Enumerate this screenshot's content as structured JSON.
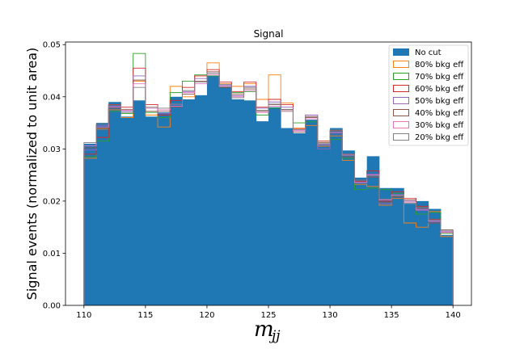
{
  "chart_data": {
    "type": "histogram",
    "title": "Signal",
    "xlabel_main": "m",
    "xlabel_sub": "jj",
    "ylabel": "Signal events (normalized to unit area)",
    "xlim": [
      108.5,
      141.5
    ],
    "ylim": [
      0,
      0.0505
    ],
    "xticks": [
      110,
      115,
      120,
      125,
      130,
      135,
      140
    ],
    "xtick_labels": [
      "110",
      "115",
      "120",
      "125",
      "130",
      "135",
      "140"
    ],
    "yticks": [
      0,
      0.01,
      0.02,
      0.03,
      0.04,
      0.05
    ],
    "ytick_labels": [
      "0.00",
      "0.01",
      "0.02",
      "0.03",
      "0.04",
      "0.05"
    ],
    "bin_edges": [
      110,
      111,
      112,
      113,
      114,
      115,
      116,
      117,
      118,
      119,
      120,
      121,
      122,
      123,
      124,
      125,
      126,
      127,
      128,
      129,
      130,
      131,
      132,
      133,
      134,
      135,
      136,
      137,
      138,
      139,
      140
    ],
    "legend_position": "upper-right",
    "series": [
      {
        "name": "No cut",
        "style": "filled",
        "color": "#1f77b4",
        "values": [
          0.031,
          0.035,
          0.039,
          0.0362,
          0.0393,
          0.0362,
          0.037,
          0.04,
          0.0395,
          0.0403,
          0.044,
          0.042,
          0.0395,
          0.0393,
          0.0353,
          0.038,
          0.034,
          0.033,
          0.0356,
          0.031,
          0.034,
          0.0297,
          0.0245,
          0.0286,
          0.0225,
          0.0225,
          0.0195,
          0.02,
          0.0185,
          0.0135
        ]
      },
      {
        "name": "80% bkg eff",
        "style": "step",
        "color": "#ff7f0e",
        "values": [
          0.0282,
          0.0338,
          0.0375,
          0.036,
          0.043,
          0.0365,
          0.0342,
          0.042,
          0.04,
          0.044,
          0.0465,
          0.0425,
          0.042,
          0.0425,
          0.0395,
          0.0442,
          0.0388,
          0.034,
          0.0345,
          0.0305,
          0.0325,
          0.0278,
          0.0232,
          0.0228,
          0.0192,
          0.0205,
          0.0158,
          0.015,
          0.018,
          0.0132
        ]
      },
      {
        "name": "70% bkg eff",
        "style": "step",
        "color": "#2ca02c",
        "values": [
          0.0285,
          0.0315,
          0.0372,
          0.0368,
          0.0483,
          0.037,
          0.036,
          0.0408,
          0.043,
          0.0442,
          0.044,
          0.0418,
          0.0408,
          0.041,
          0.0365,
          0.0378,
          0.0372,
          0.035,
          0.0352,
          0.0315,
          0.0318,
          0.0282,
          0.0222,
          0.0225,
          0.0222,
          0.0215,
          0.02,
          0.0175,
          0.0178,
          0.0138
        ]
      },
      {
        "name": "60% bkg eff",
        "style": "step",
        "color": "#d62728",
        "values": [
          0.029,
          0.0322,
          0.0385,
          0.038,
          0.0455,
          0.0385,
          0.0365,
          0.0393,
          0.0418,
          0.044,
          0.0452,
          0.0428,
          0.041,
          0.0428,
          0.038,
          0.0395,
          0.0385,
          0.0338,
          0.0362,
          0.0315,
          0.0335,
          0.029,
          0.0238,
          0.0258,
          0.02,
          0.0218,
          0.0205,
          0.019,
          0.0165,
          0.014
        ]
      },
      {
        "name": "50% bkg eff",
        "style": "step",
        "color": "#9467bd",
        "values": [
          0.0298,
          0.0345,
          0.0382,
          0.0372,
          0.044,
          0.0378,
          0.0368,
          0.0385,
          0.041,
          0.0435,
          0.0445,
          0.0422,
          0.0402,
          0.042,
          0.0378,
          0.039,
          0.038,
          0.0335,
          0.0365,
          0.03,
          0.033,
          0.0288,
          0.0235,
          0.0252,
          0.0195,
          0.021,
          0.02,
          0.0182,
          0.016,
          0.0142
        ]
      },
      {
        "name": "40% bkg eff",
        "style": "step",
        "color": "#8c564b",
        "values": [
          0.0302,
          0.034,
          0.0378,
          0.0376,
          0.0432,
          0.0372,
          0.0372,
          0.038,
          0.0405,
          0.043,
          0.0448,
          0.0418,
          0.0405,
          0.0415,
          0.0372,
          0.0385,
          0.0375,
          0.0332,
          0.036,
          0.0312,
          0.0335,
          0.0285,
          0.024,
          0.0246,
          0.0198,
          0.0208,
          0.0202,
          0.0186,
          0.0158,
          0.0145
        ]
      },
      {
        "name": "30% bkg eff",
        "style": "step",
        "color": "#e377c2",
        "values": [
          0.0306,
          0.0342,
          0.038,
          0.0374,
          0.0425,
          0.0378,
          0.0375,
          0.0382,
          0.0408,
          0.0425,
          0.0442,
          0.042,
          0.04,
          0.0412,
          0.037,
          0.0382,
          0.0372,
          0.0335,
          0.0358,
          0.0308,
          0.0332,
          0.0288,
          0.0236,
          0.025,
          0.0202,
          0.0212,
          0.0198,
          0.0184,
          0.0162,
          0.014
        ]
      },
      {
        "name": "20% bkg eff",
        "style": "step",
        "color": "#7f7f7f",
        "values": [
          0.0312,
          0.0348,
          0.0384,
          0.037,
          0.0418,
          0.038,
          0.0378,
          0.0386,
          0.0412,
          0.0428,
          0.0445,
          0.0424,
          0.0398,
          0.0418,
          0.0374,
          0.0386,
          0.0376,
          0.0337,
          0.0362,
          0.031,
          0.0336,
          0.029,
          0.024,
          0.0248,
          0.0204,
          0.021,
          0.0196,
          0.0188,
          0.0164,
          0.0144
        ]
      }
    ]
  }
}
